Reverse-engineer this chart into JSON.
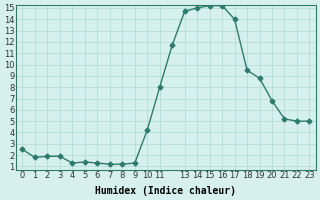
{
  "x": [
    0,
    1,
    2,
    3,
    4,
    5,
    6,
    7,
    8,
    9,
    10,
    11,
    12,
    13,
    14,
    15,
    16,
    17,
    18,
    19,
    20,
    21,
    22,
    23
  ],
  "y": [
    2.5,
    1.8,
    1.9,
    1.9,
    1.3,
    1.4,
    1.3,
    1.2,
    1.2,
    1.3,
    4.2,
    8.0,
    11.7,
    14.7,
    15.0,
    15.2,
    15.2,
    14.0,
    9.5,
    8.8,
    6.8,
    5.2,
    5.0,
    5.0
  ],
  "line_color": "#2e7b6e",
  "marker": "D",
  "marker_size": 2.5,
  "bg_color": "#d6f0ee",
  "grid_color": "#b0d8d4",
  "xlabel": "Humidex (Indice chaleur)",
  "ylabel": "",
  "title": "",
  "xlim": [
    -0.5,
    23.5
  ],
  "ylim": [
    1,
    15
  ],
  "yticks": [
    1,
    2,
    3,
    4,
    5,
    6,
    7,
    8,
    9,
    10,
    11,
    12,
    13,
    14,
    15
  ],
  "xticks": [
    0,
    1,
    2,
    3,
    4,
    5,
    6,
    7,
    8,
    9,
    10,
    11,
    13,
    14,
    15,
    16,
    17,
    18,
    19,
    20,
    21,
    22,
    23
  ],
  "xlabel_fontsize": 7,
  "tick_fontsize": 6,
  "linewidth": 1.0
}
